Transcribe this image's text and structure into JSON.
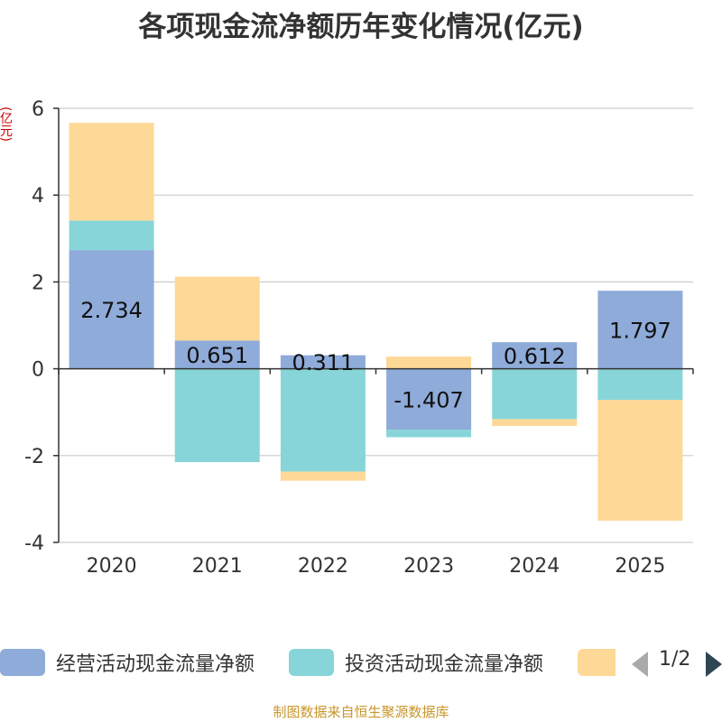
{
  "chart_data": {
    "type": "bar",
    "stacked": true,
    "title": "各项现金流净额历年变化情况(亿元)",
    "ylabel": "(亿元)",
    "categories": [
      "2020",
      "2021",
      "2022",
      "2023",
      "2024",
      "2025"
    ],
    "ylim": [
      -4,
      6
    ],
    "yticks": [
      6,
      4,
      2,
      0,
      -2,
      -4
    ],
    "series": [
      {
        "name": "经营活动现金流量净额",
        "color": "#8eabd9",
        "values": [
          2.734,
          0.651,
          0.311,
          -1.407,
          0.612,
          1.797
        ],
        "show_labels": true
      },
      {
        "name": "投资活动现金流量净额",
        "color": "#87d5d8",
        "values": [
          0.68,
          -2.15,
          -2.37,
          -0.17,
          -1.16,
          -0.72
        ],
        "show_labels": false
      },
      {
        "name": "",
        "color": "#fed896",
        "values": [
          2.25,
          1.47,
          -0.21,
          0.28,
          -0.16,
          -2.78
        ],
        "show_labels": false
      }
    ],
    "data_labels": [
      "2.734",
      "0.651",
      "0.311",
      "-1.407",
      "0.612",
      "1.797"
    ],
    "legend": {
      "position": "bottom",
      "page": "1/2"
    }
  },
  "source": "制图数据来自恒生聚源数据库"
}
